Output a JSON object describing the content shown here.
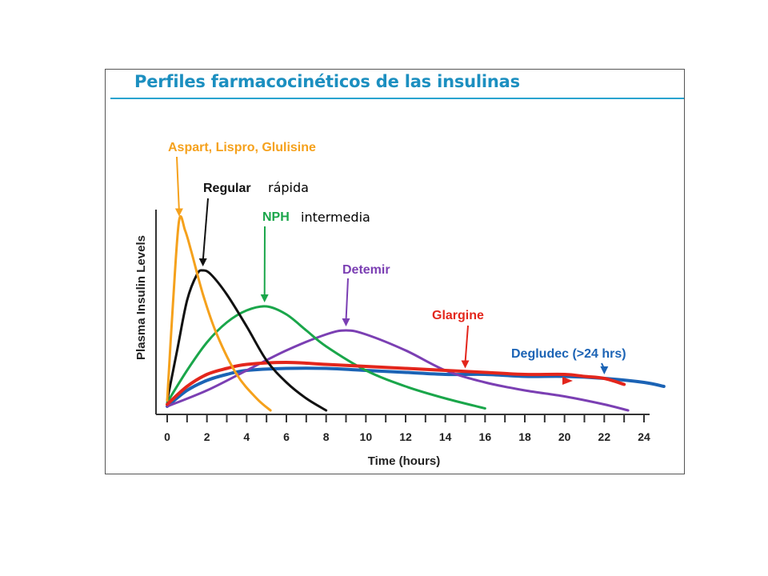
{
  "colors": {
    "title": "#1c8fc0",
    "rule": "#2aa3cf",
    "aspart": "#f5a11c",
    "regular": "#111111",
    "nph": "#1aa64a",
    "detemir": "#7b3fb3",
    "glargine": "#e3261c",
    "degludec": "#1b63b5"
  },
  "chart_data": {
    "type": "line",
    "title": "Perfiles farmacocinéticos de las insulinas",
    "xlabel": "Time (hours)",
    "ylabel": "Plasma Insulin Levels",
    "xlim": [
      0,
      24
    ],
    "ylim": [
      0,
      100
    ],
    "xticks": [
      "0",
      "2",
      "4",
      "6",
      "8",
      "10",
      "12",
      "14",
      "16",
      "18",
      "20",
      "22",
      "24"
    ],
    "grid": false,
    "series": [
      {
        "key": "aspart",
        "name": "Aspart, Lispro, Glulisine",
        "x": [
          0,
          0.3,
          0.6,
          0.9,
          1.2,
          1.8,
          2.5,
          3.5,
          4.5,
          5.2
        ],
        "y": [
          5,
          55,
          95,
          90,
          80,
          58,
          38,
          18,
          6,
          0
        ]
      },
      {
        "key": "regular",
        "name": "Regular",
        "x": [
          0,
          0.5,
          1,
          1.5,
          1.8,
          2.2,
          3,
          4,
          5,
          6,
          7,
          8
        ],
        "y": [
          5,
          30,
          55,
          68,
          70,
          68,
          58,
          42,
          25,
          14,
          6,
          0
        ]
      },
      {
        "key": "nph",
        "name": "NPH",
        "x": [
          0,
          1,
          2,
          3,
          4,
          5,
          6,
          7,
          8,
          10,
          12,
          14,
          16
        ],
        "y": [
          4,
          20,
          34,
          44,
          50,
          52,
          48,
          40,
          32,
          20,
          12,
          6,
          1
        ]
      },
      {
        "key": "detemir",
        "name": "Detemir",
        "x": [
          0,
          2,
          4,
          6,
          8,
          9,
          10,
          12,
          14,
          16,
          18,
          20,
          22,
          23.2
        ],
        "y": [
          2,
          10,
          20,
          30,
          38,
          40,
          38,
          30,
          20,
          14,
          10,
          7,
          3,
          0
        ]
      },
      {
        "key": "glargine",
        "name": "Glargine",
        "x": [
          0,
          1,
          2,
          3,
          4,
          6,
          8,
          10,
          12,
          14,
          16,
          18,
          20,
          21,
          22,
          23
        ],
        "y": [
          3,
          12,
          18,
          21,
          23,
          24,
          23,
          22,
          21,
          20,
          19,
          18,
          18,
          17,
          16,
          13
        ]
      },
      {
        "key": "degludec",
        "name": "Degludec (>24 hrs)",
        "x": [
          0,
          1,
          2,
          3,
          4,
          6,
          8,
          10,
          12,
          14,
          16,
          18,
          20,
          22,
          24,
          25
        ],
        "y": [
          2,
          10,
          15,
          18,
          20,
          21,
          21,
          20,
          19,
          18,
          18,
          17,
          17,
          16,
          14,
          12
        ]
      }
    ],
    "annotations": [
      {
        "key": "aspart",
        "text": "Aspart, Lispro, Glulisine",
        "target_x": 0.6,
        "target_y": 95
      },
      {
        "key": "regular",
        "text": "Regular",
        "target_x": 1.8,
        "target_y": 70
      },
      {
        "key": "nph",
        "text": "NPH",
        "target_x": 4.9,
        "target_y": 52
      },
      {
        "key": "detemir",
        "text": "Detemir",
        "target_x": 9,
        "target_y": 40
      },
      {
        "key": "glargine",
        "text": "Glargine",
        "target_x": 15,
        "target_y": 19
      },
      {
        "key": "degludec",
        "text": "Degludec (>24 hrs)",
        "target_x": 22,
        "target_y": 16
      }
    ],
    "notes": [
      {
        "key": "regular",
        "text": "rápida"
      },
      {
        "key": "nph",
        "text": "intermedia"
      }
    ]
  }
}
